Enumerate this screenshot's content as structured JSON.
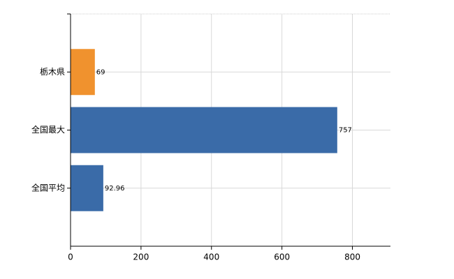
{
  "chart_data": {
    "type": "bar",
    "orientation": "horizontal",
    "categories": [
      "栃木県",
      "全国最大",
      "全国平均"
    ],
    "values": [
      69,
      757,
      92.96
    ],
    "colors": [
      "#f0922e",
      "#3a6ba8",
      "#3a6ba8"
    ],
    "xlim": [
      0,
      908
    ],
    "xticks": [
      0,
      200,
      400,
      600,
      800
    ],
    "grid": true
  }
}
